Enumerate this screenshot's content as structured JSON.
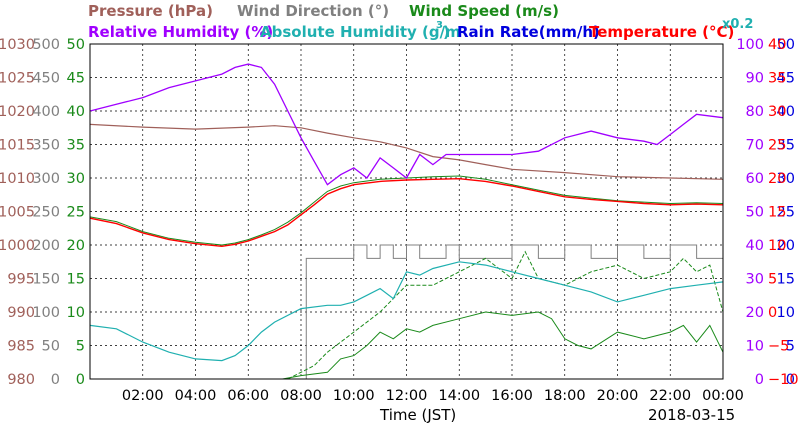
{
  "chart_data": {
    "type": "line",
    "date": "2018-03-15",
    "xlabel": "Time (JST)",
    "x_ticks": [
      "02:00",
      "04:00",
      "06:00",
      "08:00",
      "10:00",
      "12:00",
      "14:00",
      "16:00",
      "18:00",
      "20:00",
      "22:00",
      "00:00"
    ],
    "xlim_hours": [
      0,
      24
    ],
    "grid": true,
    "legend": {
      "pressure": "Pressure (hPa)",
      "wind_dir": "Wind Direction (°)",
      "wind_speed": "Wind Speed (m/s)",
      "rh": "Relative Humidity (%)",
      "ah": "Absolute Humidity (g/m",
      "ah_sup": "3",
      "ah_close": ")",
      "rain": "Rain Rate(mm/h)",
      "temp": "Temperature (°C)",
      "x02": "x0.2"
    },
    "axes": {
      "pressure": {
        "ticks": [
          "1030",
          "1025",
          "1020",
          "1015",
          "1010",
          "1005",
          "1000",
          "995",
          "990",
          "985",
          "980"
        ],
        "ylim": [
          980,
          1030
        ],
        "color": "#a0605a"
      },
      "wind_dir": {
        "ticks": [
          "500",
          "450",
          "400",
          "350",
          "300",
          "250",
          "200",
          "150",
          "100",
          "50",
          "0"
        ],
        "ylim": [
          0,
          500
        ],
        "color": "#808080"
      },
      "wind_speed": {
        "ticks": [
          "50",
          "45",
          "40",
          "35",
          "30",
          "25",
          "20",
          "15",
          "10",
          "5",
          "0"
        ],
        "ylim": [
          0,
          50
        ],
        "color": "#1a8a1a"
      },
      "rh": {
        "ticks": [
          "100",
          "90",
          "80",
          "70",
          "60",
          "50",
          "40",
          "30",
          "20",
          "10",
          "0"
        ],
        "ylim": [
          0,
          100
        ],
        "color": "#a000ff"
      },
      "rain": {
        "ticks": [
          "50",
          "45",
          "40",
          "35",
          "30",
          "25",
          "20",
          "15",
          "10",
          "5",
          "0"
        ],
        "ylim": [
          0,
          50
        ],
        "color": "#0000dd"
      },
      "temp": {
        "ticks": [
          "40",
          "35",
          "30",
          "25",
          "20",
          "15",
          "10",
          "5",
          "0",
          "−5",
          "−10"
        ],
        "ylim": [
          -10,
          40
        ],
        "color": "#ff0000"
      }
    },
    "colors": {
      "pressure": "#a0605a",
      "wind_dir": "#808080",
      "wind_speed": "#1a8a1a",
      "wind_gust": "#1a8a1a",
      "rh": "#a000ff",
      "ah": "#20b0b0",
      "rain": "#0000dd",
      "temp": "#ff0000",
      "temp_dew": "#1a8a1a"
    },
    "series": {
      "pressure": {
        "x": [
          0,
          2,
          4,
          6,
          7,
          8,
          9,
          10,
          11,
          12,
          13,
          14,
          15,
          16,
          18,
          20,
          22,
          24
        ],
        "y": [
          1018.0,
          1017.6,
          1017.3,
          1017.6,
          1017.8,
          1017.5,
          1016.7,
          1016.0,
          1015.4,
          1014.5,
          1013.2,
          1012.7,
          1012.0,
          1011.3,
          1010.8,
          1010.2,
          1010.0,
          1009.8
        ]
      },
      "wind_dir": {
        "x": [
          0,
          8.1,
          8.2,
          9.5,
          10,
          10.5,
          11,
          11.5,
          12,
          12.5,
          13,
          13.5,
          14,
          15,
          16,
          17,
          18,
          19,
          20,
          21,
          22,
          23,
          24
        ],
        "y": [
          0,
          0,
          180,
          180,
          200,
          180,
          200,
          180,
          200,
          180,
          180,
          200,
          180,
          180,
          200,
          180,
          200,
          180,
          200,
          180,
          200,
          180,
          200
        ]
      },
      "wind_speed": {
        "x": [
          0,
          7.3,
          8,
          9,
          9.5,
          10,
          10.5,
          11,
          11.5,
          12,
          12.5,
          13,
          14,
          15,
          16,
          17,
          17.5,
          18,
          18.5,
          19,
          20,
          21,
          22,
          22.5,
          23,
          23.5,
          24
        ],
        "y": [
          0,
          0,
          0.5,
          1,
          3,
          3.5,
          5,
          7,
          6,
          7.5,
          7,
          8,
          9,
          10,
          9.5,
          10,
          9,
          6,
          5,
          4.5,
          7,
          6,
          7,
          8,
          5.5,
          8,
          4
        ]
      },
      "wind_gust": {
        "x": [
          0,
          7.5,
          8.5,
          9,
          10,
          11,
          12,
          13,
          14,
          15,
          16,
          16.5,
          17,
          18,
          19,
          20,
          21,
          22,
          22.5,
          23,
          23.5,
          24
        ],
        "y": [
          0,
          0,
          2,
          4,
          7,
          10,
          14,
          14,
          16,
          18,
          15,
          19,
          15,
          14,
          16,
          17,
          15,
          16,
          18,
          16,
          17,
          10
        ]
      },
      "rh": {
        "x": [
          0,
          1,
          2,
          3,
          4,
          5,
          5.5,
          6,
          6.5,
          7,
          7.5,
          8,
          8.5,
          9,
          9.5,
          10,
          10.5,
          11,
          11.5,
          12,
          12.5,
          13,
          13.5,
          14,
          15,
          16,
          17,
          18,
          19,
          20,
          21,
          21.5,
          22,
          22.5,
          23,
          24
        ],
        "y": [
          80,
          82,
          84,
          87,
          89,
          91,
          93,
          94,
          93,
          88,
          80,
          72,
          65,
          58,
          61,
          63,
          60,
          66,
          63,
          60,
          67,
          64,
          67,
          67,
          67,
          67,
          68,
          72,
          74,
          72,
          71,
          70,
          73,
          76,
          79,
          78
        ]
      },
      "ah": {
        "x": [
          0,
          1,
          2,
          3,
          4,
          5,
          5.5,
          6,
          6.5,
          7,
          8,
          9,
          9.5,
          10,
          10.5,
          11,
          11.5,
          12,
          12.5,
          13,
          14,
          15,
          16,
          17,
          18,
          19,
          20,
          21,
          22,
          23,
          24
        ],
        "y": [
          1.6,
          1.5,
          1.1,
          0.8,
          0.6,
          0.55,
          0.7,
          1.0,
          1.4,
          1.7,
          2.1,
          2.2,
          2.2,
          2.3,
          2.5,
          2.7,
          2.4,
          3.2,
          3.1,
          3.3,
          3.5,
          3.4,
          3.2,
          3.0,
          2.8,
          2.6,
          2.3,
          2.5,
          2.7,
          2.8,
          2.9
        ]
      },
      "temp": {
        "x": [
          0,
          1,
          2,
          3,
          4,
          5,
          5.5,
          6,
          6.5,
          7,
          7.5,
          8,
          8.5,
          9,
          9.5,
          10,
          11,
          12,
          13,
          14,
          15,
          16,
          17,
          18,
          19,
          20,
          21,
          22,
          23,
          24
        ],
        "y": [
          14.0,
          13.2,
          11.8,
          10.8,
          10.2,
          9.8,
          10.1,
          10.6,
          11.3,
          12.0,
          13.0,
          14.5,
          16.0,
          17.6,
          18.4,
          19.0,
          19.5,
          19.7,
          19.8,
          19.9,
          19.5,
          18.8,
          18.0,
          17.2,
          16.8,
          16.5,
          16.2,
          16.0,
          16.1,
          16.0
        ]
      },
      "temp_dew": {
        "x": [
          0,
          1,
          2,
          3,
          4,
          5,
          5.5,
          6,
          6.5,
          7,
          7.5,
          8,
          8.5,
          9,
          9.5,
          10,
          11,
          12,
          13,
          14,
          15,
          16,
          17,
          18,
          19,
          20,
          21,
          22,
          23,
          24
        ],
        "y": [
          14.2,
          13.5,
          12.0,
          11.0,
          10.4,
          10.0,
          10.3,
          10.8,
          11.5,
          12.3,
          13.4,
          14.8,
          16.4,
          18.0,
          18.8,
          19.3,
          19.8,
          20.0,
          20.2,
          20.3,
          19.8,
          19.0,
          18.2,
          17.4,
          17.0,
          16.6,
          16.4,
          16.2,
          16.3,
          16.2
        ]
      }
    }
  }
}
